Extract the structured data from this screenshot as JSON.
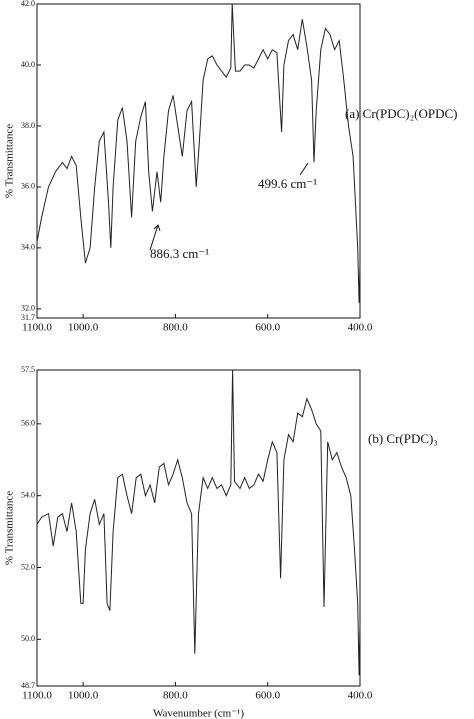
{
  "chart_data": [
    {
      "type": "line",
      "ylabel": "% Transmittance",
      "color": "#222222",
      "annotations": [
        "(a) Cr(PDC)₂(OPDC)",
        "886.3 cm⁻¹",
        "499.6 cm⁻¹"
      ],
      "xlim": [
        1100,
        400
      ],
      "ylim": [
        31.7,
        42.0
      ],
      "xticks": [
        {
          "value": 1100,
          "label": "1100.0"
        },
        {
          "value": 1000,
          "label": "1000.0"
        },
        {
          "value": 800,
          "label": "800.0"
        },
        {
          "value": 600,
          "label": "600.0"
        },
        {
          "value": 400,
          "label": "400.0"
        }
      ],
      "yticks": [
        31.7,
        {
          "value": 32,
          "label": "32.0"
        },
        {
          "value": 34,
          "label": "34.0"
        },
        {
          "value": 36,
          "label": "36.0"
        },
        {
          "value": 38,
          "label": "38.0"
        },
        {
          "value": 40,
          "label": "40.0"
        },
        {
          "value": 42,
          "label": "42.0"
        }
      ],
      "x": [
        1100,
        1090,
        1075,
        1060,
        1045,
        1035,
        1025,
        1015,
        1005,
        995,
        985,
        975,
        965,
        955,
        945,
        940,
        935,
        925,
        915,
        905,
        895,
        886,
        875,
        865,
        858,
        850,
        840,
        832,
        825,
        815,
        805,
        795,
        785,
        775,
        765,
        755,
        748,
        740,
        730,
        720,
        710,
        700,
        690,
        680,
        677,
        670,
        660,
        650,
        640,
        630,
        620,
        610,
        600,
        590,
        580,
        570,
        565,
        555,
        545,
        535,
        525,
        515,
        505,
        499.6,
        495,
        485,
        475,
        465,
        455,
        445,
        435,
        425,
        415,
        410,
        405,
        402,
        400
      ],
      "values": [
        34.2,
        35.0,
        36.0,
        36.5,
        36.8,
        36.6,
        37.0,
        36.7,
        35.0,
        33.5,
        34.0,
        36.0,
        37.5,
        37.8,
        35.5,
        34.0,
        36.0,
        38.2,
        38.6,
        37.5,
        35.0,
        37.5,
        38.3,
        38.8,
        36.5,
        35.2,
        36.5,
        35.5,
        37.0,
        38.5,
        39.0,
        38.0,
        37.0,
        38.5,
        38.8,
        36.0,
        37.5,
        39.5,
        40.2,
        40.3,
        40.0,
        39.8,
        39.6,
        39.9,
        42.0,
        39.8,
        39.8,
        40.0,
        40.0,
        39.9,
        40.2,
        40.5,
        40.2,
        40.5,
        40.4,
        37.8,
        40.0,
        40.8,
        41.0,
        40.5,
        41.5,
        40.6,
        39.5,
        36.8,
        38.5,
        40.5,
        41.2,
        41.0,
        40.5,
        40.8,
        39.5,
        38.0,
        37.0,
        35.5,
        34.0,
        32.2,
        33.5
      ]
    },
    {
      "type": "line",
      "ylabel": "% Transmittance",
      "xlabel": "Wavenumber (cm⁻¹)",
      "color": "#222222",
      "annotations": [
        "(b) Cr(PDC)₃"
      ],
      "xlim": [
        1100,
        400
      ],
      "ylim": [
        48.7,
        57.5
      ],
      "xticks": [
        {
          "value": 1100,
          "label": "1100.0"
        },
        {
          "value": 1000,
          "label": "1000.0"
        },
        {
          "value": 800,
          "label": "800.0"
        },
        {
          "value": 600,
          "label": "600.0"
        },
        {
          "value": 400,
          "label": "400.0"
        }
      ],
      "yticks": [
        48.7,
        {
          "value": 50,
          "label": "50.0"
        },
        {
          "value": 52,
          "label": "52.0"
        },
        {
          "value": 54,
          "label": "54.0"
        },
        {
          "value": 56,
          "label": "56.0"
        },
        57.5
      ],
      "x": [
        1100,
        1090,
        1075,
        1065,
        1055,
        1045,
        1035,
        1025,
        1015,
        1005,
        1000,
        995,
        985,
        975,
        965,
        955,
        948,
        942,
        935,
        925,
        915,
        905,
        895,
        885,
        875,
        865,
        855,
        845,
        835,
        825,
        815,
        805,
        795,
        785,
        775,
        765,
        758,
        750,
        740,
        730,
        720,
        710,
        700,
        690,
        680,
        676,
        672,
        660,
        650,
        640,
        630,
        620,
        610,
        600,
        590,
        580,
        572,
        565,
        555,
        545,
        535,
        525,
        515,
        505,
        495,
        485,
        478,
        470,
        460,
        450,
        440,
        430,
        420,
        412,
        405,
        402,
        400
      ],
      "values": [
        53.2,
        53.4,
        53.5,
        52.6,
        53.4,
        53.5,
        53.0,
        53.8,
        53.0,
        51.0,
        51.0,
        52.5,
        53.5,
        53.9,
        53.2,
        53.5,
        51.0,
        50.8,
        53.0,
        54.5,
        54.6,
        54.0,
        53.5,
        54.5,
        54.6,
        54.0,
        54.3,
        53.8,
        54.8,
        54.9,
        54.3,
        54.6,
        55.0,
        54.5,
        53.8,
        53.5,
        49.6,
        53.5,
        54.5,
        54.2,
        54.5,
        54.2,
        54.3,
        54.0,
        54.3,
        57.5,
        54.4,
        54.2,
        54.5,
        54.2,
        54.3,
        54.6,
        54.4,
        55.0,
        55.5,
        55.2,
        51.7,
        55.0,
        55.7,
        55.5,
        56.3,
        56.2,
        56.7,
        56.4,
        56.0,
        55.8,
        50.9,
        55.5,
        55.0,
        55.2,
        54.8,
        54.5,
        54.0,
        52.5,
        51.0,
        49.0,
        50.5
      ]
    }
  ]
}
